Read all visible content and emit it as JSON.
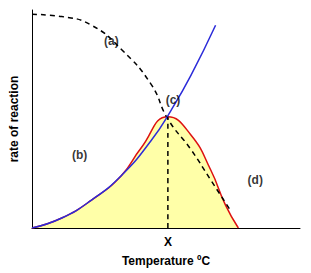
{
  "chart_data": {
    "type": "line",
    "xlabel": "Temperature ºC",
    "ylabel": "rate of reaction",
    "xlim": [
      0,
      100
    ],
    "ylim": [
      0,
      100
    ],
    "xticks": [
      {
        "value": 50.7,
        "label": "X"
      }
    ],
    "tick_labels": "x",
    "grid": false,
    "series": [
      {
        "color": "#000000",
        "line_style": "dashed",
        "x": [
          0,
          11.1,
          22.2,
          33.3,
          44.4,
          50.7,
          59.3,
          66.7,
          74.1
        ],
        "values": [
          98,
          97,
          93,
          82,
          66,
          50,
          36,
          22,
          8
        ]
      },
      {
        "color": "#2b2bd9",
        "line_style": "solid",
        "x": [
          0,
          11.1,
          22.2,
          33.3,
          44.4,
          51.9,
          59.3,
          68.5
        ],
        "values": [
          0,
          4.6,
          12.8,
          24,
          40,
          54,
          70,
          93
        ]
      },
      {
        "type": "area",
        "color": "#dd1111",
        "line_style": "solid",
        "x": [
          0,
          11.1,
          22.2,
          33.3,
          40.7,
          50.7,
          59.3,
          66.7,
          72.2,
          77.0
        ],
        "values": [
          0,
          4.6,
          12.8,
          24,
          36.7,
          51,
          42.7,
          26.6,
          10.5,
          0
        ]
      },
      {
        "color": "#000000",
        "line_style": "dashed",
        "x": [
          50.7,
          50.7
        ],
        "values": [
          0,
          51
        ]
      }
    ],
    "annotations": [
      {
        "text": "(a)",
        "x": 29.6,
        "y": 86
      },
      {
        "text": "(b)",
        "x": 17.8,
        "y": 33.5
      },
      {
        "text": "(c)",
        "x": 52.6,
        "y": 58.7
      },
      {
        "text": "(d)",
        "x": 83.3,
        "y": 22
      }
    ]
  }
}
